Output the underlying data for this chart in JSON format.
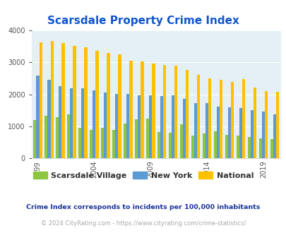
{
  "title": "Scarsdale Property Crime Index",
  "years": [
    1999,
    2000,
    2001,
    2002,
    2003,
    2004,
    2005,
    2006,
    2007,
    2008,
    2009,
    2010,
    2011,
    2012,
    2013,
    2014,
    2015,
    2016,
    2017,
    2018,
    2019,
    2020
  ],
  "scarsdale": [
    1200,
    1340,
    1280,
    1380,
    950,
    900,
    960,
    890,
    1080,
    1230,
    1250,
    830,
    800,
    1060,
    720,
    780,
    840,
    730,
    720,
    670,
    620,
    600
  ],
  "newyork": [
    2580,
    2450,
    2260,
    2200,
    2190,
    2120,
    2060,
    2010,
    2010,
    1960,
    1960,
    1940,
    1960,
    1870,
    1730,
    1720,
    1620,
    1590,
    1570,
    1510,
    1470,
    1380
  ],
  "national": [
    3620,
    3660,
    3600,
    3520,
    3460,
    3350,
    3290,
    3240,
    3050,
    3030,
    2960,
    2910,
    2890,
    2760,
    2610,
    2510,
    2460,
    2390,
    2480,
    2210,
    2100,
    2080
  ],
  "colors": {
    "scarsdale": "#8dc63f",
    "newyork": "#5b9bd5",
    "national": "#ffc000"
  },
  "ylim": [
    0,
    4000
  ],
  "yticks": [
    0,
    1000,
    2000,
    3000,
    4000
  ],
  "xlabel_ticks": [
    1999,
    2004,
    2009,
    2014,
    2019
  ],
  "bg_color": "#e4f0f5",
  "legend_labels": [
    "Scarsdale Village",
    "New York",
    "National"
  ],
  "footnote1": "Crime Index corresponds to incidents per 100,000 inhabitants",
  "footnote2": "© 2024 CityRating.com - https://www.cityrating.com/crime-statistics/",
  "title_color": "#1155cc",
  "footnote1_color": "#1a3399",
  "footnote2_color": "#aaaaaa"
}
